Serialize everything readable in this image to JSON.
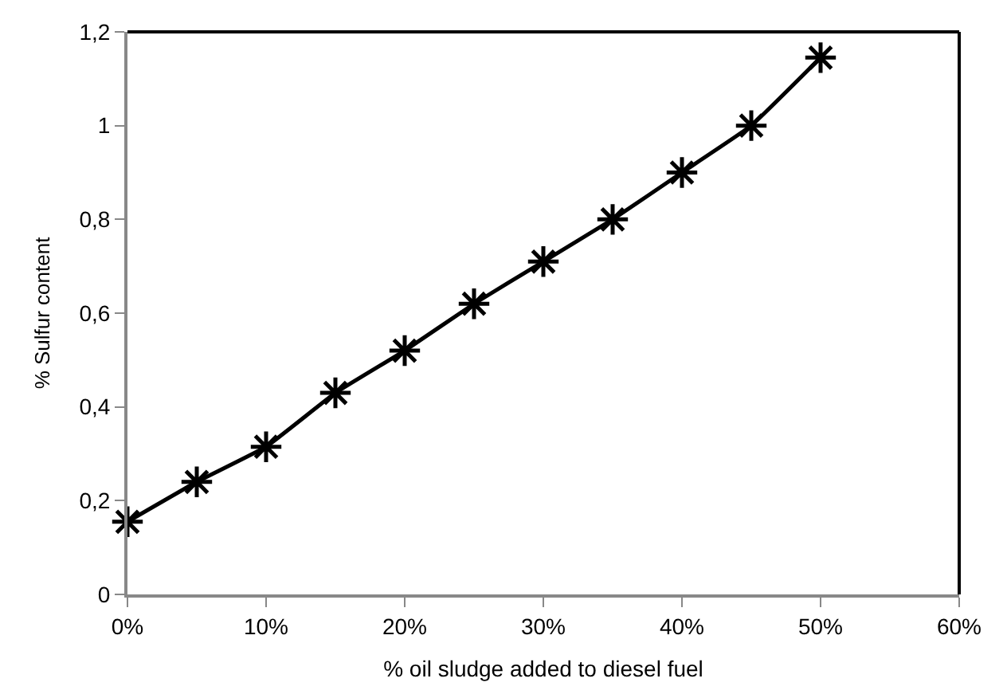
{
  "chart_data": {
    "type": "line",
    "xlabel": "% oil sludge added to diesel fuel",
    "ylabel": "% Sulfur content",
    "x": [
      0,
      5,
      10,
      15,
      20,
      25,
      30,
      35,
      40,
      45,
      50
    ],
    "series": [
      {
        "color": "#000000",
        "values": [
          0.155,
          0.24,
          0.315,
          0.43,
          0.52,
          0.62,
          0.71,
          0.8,
          0.9,
          1.0,
          1.145
        ]
      }
    ],
    "xlim": [
      0,
      60
    ],
    "xticks": [
      {
        "value": 0,
        "label": "0%"
      },
      {
        "value": 10,
        "label": "10%"
      },
      {
        "value": 20,
        "label": "20%"
      },
      {
        "value": 30,
        "label": "30%"
      },
      {
        "value": 40,
        "label": "40%"
      },
      {
        "value": 50,
        "label": "50%"
      },
      {
        "value": 60,
        "label": "60%"
      }
    ],
    "ylim": [
      0,
      1.2
    ],
    "yticks": [
      0,
      {
        "value": 0.2,
        "label": "0,2"
      },
      {
        "value": 0.4,
        "label": "0,4"
      },
      {
        "value": 0.6,
        "label": "0,6"
      },
      {
        "value": 0.8,
        "label": "0,8"
      },
      1,
      {
        "value": 1.2,
        "label": "1,2"
      }
    ],
    "marker": "cross",
    "line_style": "solid"
  }
}
